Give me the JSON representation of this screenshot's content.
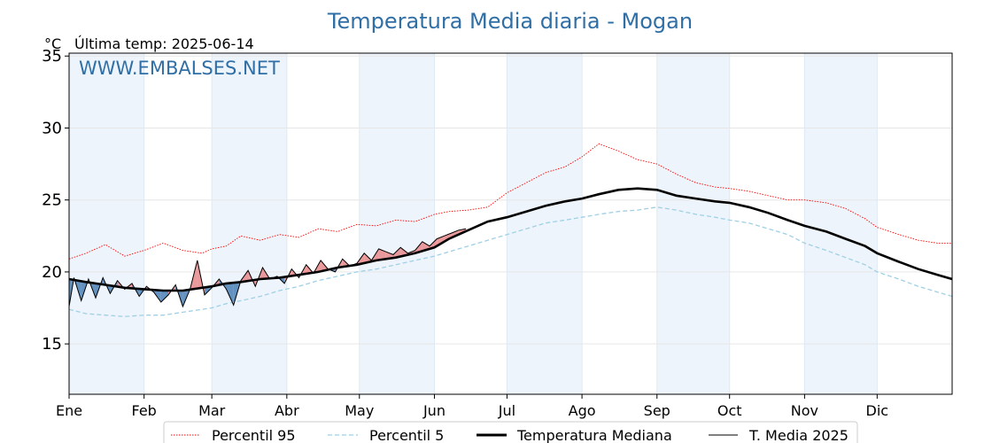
{
  "header": {
    "title": "Temperatura Media diaria - Mogan",
    "unit": "°C",
    "last_temp_label": "Última temp: 2025-06-14",
    "watermark": "WWW.EMBALSES.NET"
  },
  "colors": {
    "p95": "#ff0000",
    "p5": "#9fd0e6",
    "median": "#000000",
    "media2025": "#000000",
    "fill_below_median": "#4a7fb5",
    "fill_above_median": "#e8878a",
    "month_band": "#eef4fb",
    "title": "#2f6fa6"
  },
  "chart_data": {
    "type": "line",
    "title": "Temperatura Media diaria - Mogan",
    "ylabel": "°C",
    "ylim": [
      11.5,
      35.2
    ],
    "xlim": [
      1,
      366
    ],
    "yticks": [
      15,
      20,
      25,
      30,
      35
    ],
    "grid": true,
    "legend_position": "bottom",
    "x_unit": "day_of_year",
    "month_ticks": [
      {
        "day": 1,
        "label": "Ene"
      },
      {
        "day": 32,
        "label": "Feb"
      },
      {
        "day": 60,
        "label": "Mar"
      },
      {
        "day": 91,
        "label": "Abr"
      },
      {
        "day": 121,
        "label": "May"
      },
      {
        "day": 152,
        "label": "Jun"
      },
      {
        "day": 182,
        "label": "Jul"
      },
      {
        "day": 213,
        "label": "Ago"
      },
      {
        "day": 244,
        "label": "Sep"
      },
      {
        "day": 274,
        "label": "Oct"
      },
      {
        "day": 305,
        "label": "Nov"
      },
      {
        "day": 335,
        "label": "Dic"
      }
    ],
    "series": [
      {
        "name": "Percentil 95",
        "style": "dotted-red",
        "x": [
          1,
          8,
          16,
          24,
          32,
          40,
          48,
          56,
          60,
          66,
          72,
          80,
          88,
          96,
          104,
          112,
          120,
          128,
          136,
          144,
          152,
          158,
          166,
          174,
          182,
          190,
          198,
          206,
          213,
          220,
          228,
          236,
          244,
          252,
          260,
          268,
          274,
          282,
          290,
          298,
          305,
          314,
          322,
          330,
          335,
          344,
          352,
          360,
          366
        ],
        "y": [
          20.9,
          21.3,
          21.9,
          21.1,
          21.5,
          22.0,
          21.5,
          21.3,
          21.6,
          21.8,
          22.5,
          22.2,
          22.6,
          22.4,
          23.0,
          22.8,
          23.3,
          23.2,
          23.6,
          23.5,
          24.0,
          24.2,
          24.3,
          24.5,
          25.5,
          26.2,
          26.9,
          27.3,
          28.0,
          28.9,
          28.4,
          27.8,
          27.5,
          26.8,
          26.2,
          25.9,
          25.8,
          25.6,
          25.3,
          25.0,
          25.0,
          24.8,
          24.4,
          23.7,
          23.1,
          22.6,
          22.2,
          22.0,
          22.0
        ]
      },
      {
        "name": "Percentil 5",
        "style": "dashed-lightblue",
        "x": [
          1,
          8,
          16,
          24,
          32,
          40,
          48,
          56,
          60,
          66,
          72,
          80,
          88,
          96,
          104,
          112,
          120,
          128,
          136,
          144,
          152,
          158,
          166,
          174,
          182,
          190,
          198,
          206,
          213,
          220,
          228,
          236,
          244,
          252,
          260,
          268,
          274,
          282,
          290,
          298,
          305,
          314,
          322,
          330,
          335,
          344,
          352,
          360,
          366
        ],
        "y": [
          17.4,
          17.1,
          17.0,
          16.9,
          17.0,
          17.0,
          17.2,
          17.4,
          17.5,
          17.8,
          18.0,
          18.3,
          18.7,
          19.0,
          19.4,
          19.7,
          20.0,
          20.2,
          20.5,
          20.8,
          21.1,
          21.4,
          21.8,
          22.2,
          22.6,
          23.0,
          23.4,
          23.6,
          23.8,
          24.0,
          24.2,
          24.3,
          24.5,
          24.3,
          24.0,
          23.8,
          23.6,
          23.4,
          23.0,
          22.6,
          22.0,
          21.5,
          21.0,
          20.5,
          20.0,
          19.5,
          19.0,
          18.6,
          18.3
        ]
      },
      {
        "name": "Temperatura Mediana",
        "style": "solid-thick-black",
        "x": [
          1,
          8,
          16,
          24,
          32,
          40,
          48,
          56,
          60,
          66,
          72,
          80,
          88,
          96,
          104,
          112,
          120,
          128,
          136,
          144,
          152,
          158,
          166,
          174,
          182,
          190,
          198,
          206,
          213,
          220,
          228,
          236,
          244,
          252,
          260,
          268,
          274,
          282,
          290,
          298,
          305,
          314,
          322,
          330,
          335,
          344,
          352,
          360,
          366
        ],
        "y": [
          19.5,
          19.3,
          19.1,
          18.9,
          18.8,
          18.7,
          18.7,
          18.9,
          19.0,
          19.2,
          19.3,
          19.5,
          19.6,
          19.8,
          20.0,
          20.3,
          20.5,
          20.8,
          21.0,
          21.3,
          21.7,
          22.3,
          22.9,
          23.5,
          23.8,
          24.2,
          24.6,
          24.9,
          25.1,
          25.4,
          25.7,
          25.8,
          25.7,
          25.3,
          25.1,
          24.9,
          24.8,
          24.5,
          24.1,
          23.6,
          23.2,
          22.8,
          22.3,
          21.8,
          21.3,
          20.7,
          20.2,
          19.8,
          19.5
        ]
      },
      {
        "name": "T. Media 2025",
        "style": "solid-thin-black",
        "x": [
          1,
          3,
          6,
          9,
          12,
          15,
          18,
          21,
          24,
          27,
          30,
          33,
          36,
          39,
          42,
          45,
          48,
          51,
          54,
          57,
          60,
          63,
          66,
          69,
          72,
          75,
          78,
          81,
          84,
          87,
          90,
          93,
          96,
          99,
          102,
          105,
          108,
          111,
          114,
          117,
          120,
          123,
          126,
          129,
          132,
          135,
          138,
          141,
          144,
          147,
          150,
          153,
          156,
          159,
          162,
          165
        ],
        "y": [
          17.6,
          19.6,
          18.0,
          19.5,
          18.2,
          19.6,
          18.5,
          19.4,
          18.8,
          19.2,
          18.3,
          19.0,
          18.6,
          17.9,
          18.4,
          19.1,
          17.6,
          18.8,
          20.8,
          18.4,
          18.9,
          19.5,
          18.8,
          17.7,
          19.4,
          20.1,
          19.0,
          20.3,
          19.5,
          19.7,
          19.2,
          20.2,
          19.6,
          20.5,
          19.9,
          20.8,
          20.2,
          20.0,
          20.9,
          20.4,
          20.6,
          21.3,
          20.8,
          21.6,
          21.4,
          21.2,
          21.7,
          21.3,
          21.5,
          22.1,
          21.8,
          22.3,
          22.5,
          22.7,
          22.9,
          23.0
        ]
      }
    ]
  },
  "legend": {
    "items": [
      {
        "label": "Percentil 95"
      },
      {
        "label": "Percentil 5"
      },
      {
        "label": "Temperatura Mediana"
      },
      {
        "label": "T. Media 2025"
      }
    ]
  }
}
